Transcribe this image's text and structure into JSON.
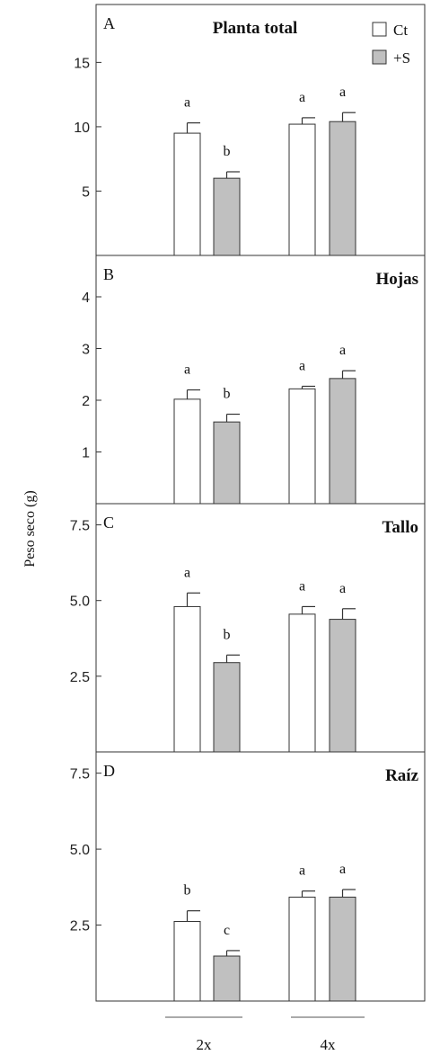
{
  "chart_data": {
    "type": "bar",
    "ylabel": "Peso seco (g)",
    "categories": [
      "2x",
      "4x"
    ],
    "legend": {
      "placement": "top-right",
      "entries": [
        {
          "label": "Ct",
          "color": "#ffffff"
        },
        {
          "label": "+S",
          "color": "#c0c0c0"
        }
      ]
    },
    "panels": [
      {
        "letter": "A",
        "title": "Planta total",
        "ylim": [
          0,
          19.5
        ],
        "yticks": [
          5,
          10,
          15
        ],
        "ytick_labels": [
          "5",
          "10",
          "15"
        ],
        "series": [
          {
            "name": "Ct",
            "values": [
              9.5,
              10.2
            ],
            "errors": [
              0.8,
              0.5
            ],
            "letters": [
              "a",
              "a"
            ]
          },
          {
            "name": "+S",
            "values": [
              6.0,
              10.4
            ],
            "errors": [
              0.5,
              0.7
            ],
            "letters": [
              "b",
              "a"
            ]
          }
        ]
      },
      {
        "letter": "B",
        "title": "Hojas",
        "ylim": [
          0,
          4.8
        ],
        "yticks": [
          1,
          2,
          3,
          4
        ],
        "ytick_labels": [
          "1",
          "2",
          "3",
          "4"
        ],
        "series": [
          {
            "name": "Ct",
            "values": [
              2.02,
              2.22
            ],
            "errors": [
              0.18,
              0.05
            ],
            "letters": [
              "a",
              "a"
            ]
          },
          {
            "name": "+S",
            "values": [
              1.58,
              2.42
            ],
            "errors": [
              0.15,
              0.15
            ],
            "letters": [
              "b",
              "a"
            ]
          }
        ]
      },
      {
        "letter": "C",
        "title": "Tallo",
        "ylim": [
          0,
          8.2
        ],
        "yticks": [
          2.5,
          5.0,
          7.5
        ],
        "ytick_labels": [
          "2.5",
          "5.0",
          "7.5"
        ],
        "series": [
          {
            "name": "Ct",
            "values": [
              4.8,
              4.55
            ],
            "errors": [
              0.45,
              0.25
            ],
            "letters": [
              "a",
              "a"
            ]
          },
          {
            "name": "+S",
            "values": [
              2.95,
              4.38
            ],
            "errors": [
              0.25,
              0.35
            ],
            "letters": [
              "b",
              "a"
            ]
          }
        ]
      },
      {
        "letter": "D",
        "title": "Raíz",
        "ylim": [
          0,
          8.2
        ],
        "yticks": [
          2.5,
          5.0,
          7.5
        ],
        "ytick_labels": [
          "2.5",
          "5.0",
          "7.5"
        ],
        "series": [
          {
            "name": "Ct",
            "values": [
              2.62,
              3.42
            ],
            "errors": [
              0.35,
              0.2
            ],
            "letters": [
              "b",
              "a"
            ]
          },
          {
            "name": "+S",
            "values": [
              1.48,
              3.42
            ],
            "errors": [
              0.18,
              0.25
            ],
            "letters": [
              "c",
              "a"
            ]
          }
        ]
      }
    ]
  }
}
